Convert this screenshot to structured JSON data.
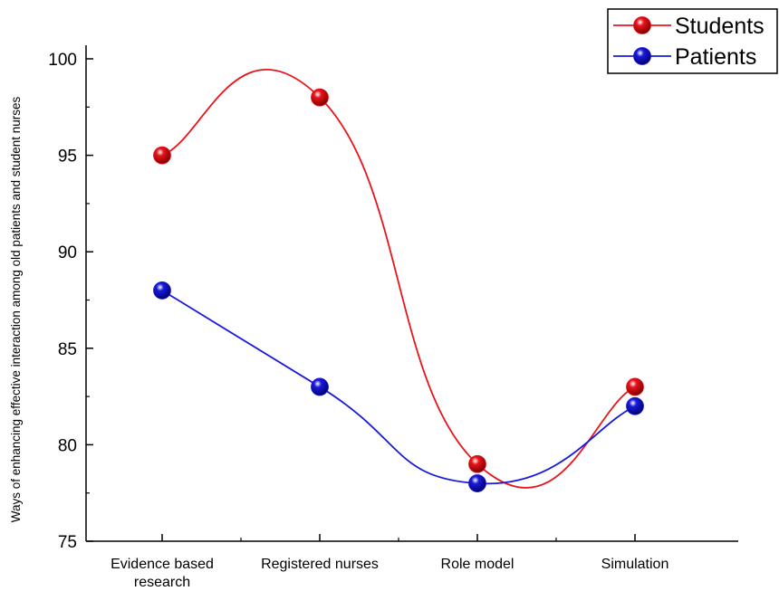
{
  "chart_data": {
    "type": "line",
    "categories": [
      [
        "Evidence based",
        "research"
      ],
      [
        "Registered nurses"
      ],
      [
        "Role model"
      ],
      [
        "Simulation"
      ]
    ],
    "series": [
      {
        "name": "Students",
        "values": [
          95,
          98,
          79,
          83
        ],
        "color": "#e8141b"
      },
      {
        "name": "Patients",
        "values": [
          88,
          83,
          78,
          82
        ],
        "color": "#1a1adc"
      }
    ],
    "ylabel": "Ways of enhancing effective  interaction among old patients and student nurses",
    "xlabel": "",
    "ylim": [
      75,
      100
    ],
    "yticks": [
      "75",
      "80",
      "85",
      "90",
      "95",
      "100"
    ],
    "grid": false,
    "legend": "top-right",
    "smooth": true
  }
}
